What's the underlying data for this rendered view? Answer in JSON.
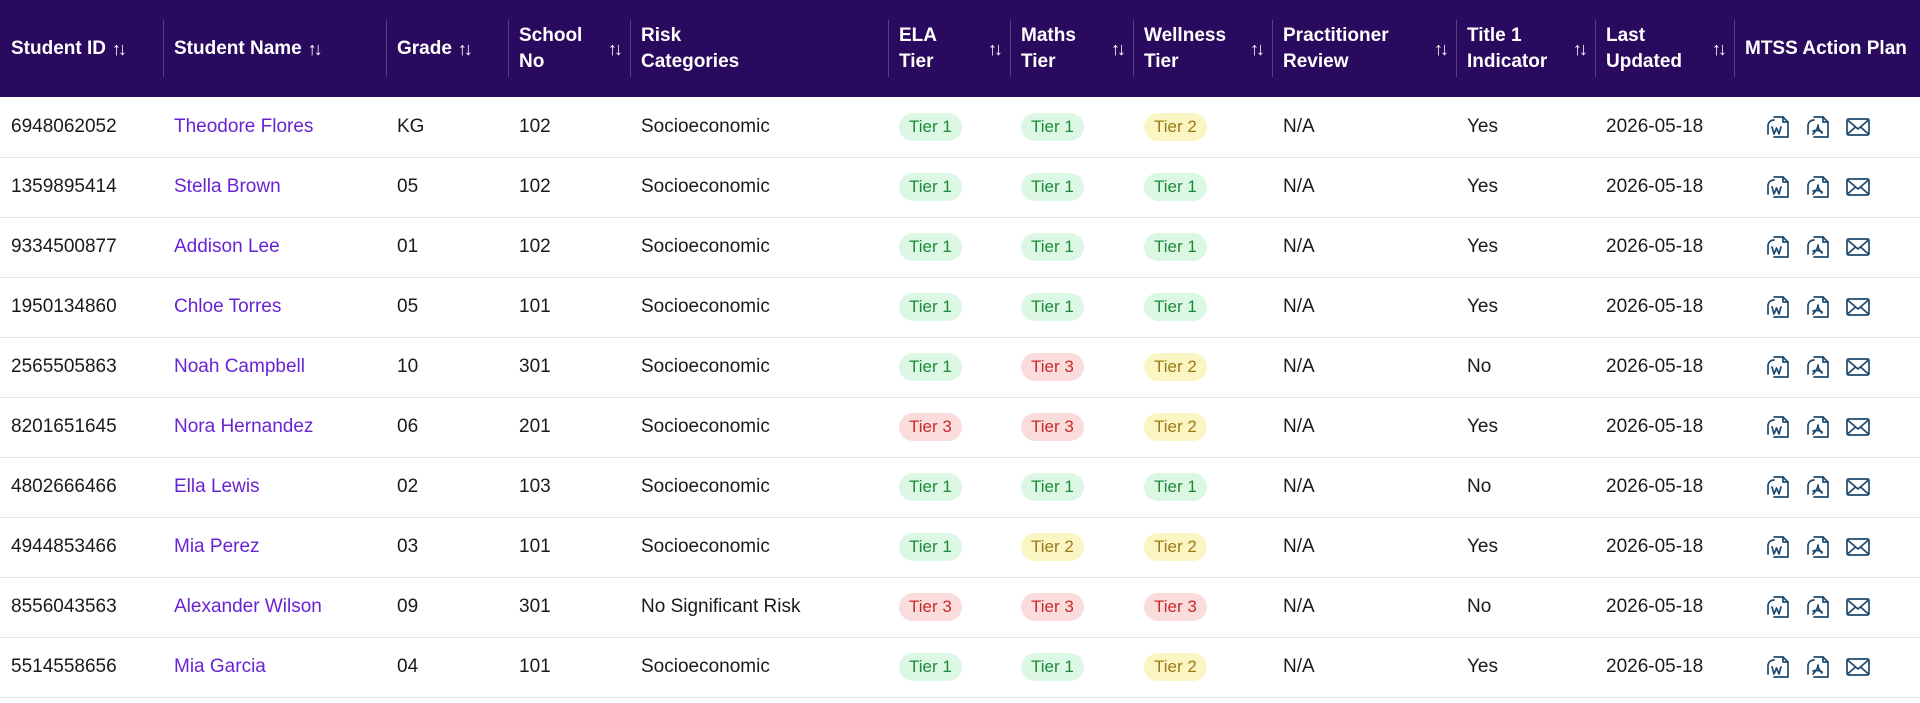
{
  "columns": [
    {
      "label": "Student ID",
      "sortable": true
    },
    {
      "label": "Student Name",
      "sortable": true
    },
    {
      "label": "Grade",
      "sortable": true
    },
    {
      "label": "School No",
      "sortable": true
    },
    {
      "label": "Risk Categories",
      "sortable": false
    },
    {
      "label": "ELA Tier",
      "sortable": true
    },
    {
      "label": "Maths Tier",
      "sortable": true
    },
    {
      "label": "Wellness Tier",
      "sortable": true
    },
    {
      "label": "Practitioner Review",
      "sortable": true
    },
    {
      "label": "Title 1 Indicator",
      "sortable": true
    },
    {
      "label": "Last Updated",
      "sortable": true
    },
    {
      "label": "MTSS Action Plan",
      "sortable": false
    }
  ],
  "sort_icon": "sort-updown-icon",
  "action_icons": [
    "word-doc-icon",
    "pdf-doc-icon",
    "email-icon"
  ],
  "colors": {
    "header_bg": "#2a0a5e",
    "name_link": "#6a23d4",
    "tier1_bg": "#dcf7e3",
    "tier1_fg": "#1d8a3a",
    "tier2_bg": "#fbf5c4",
    "tier2_fg": "#9a7a12",
    "tier3_bg": "#fbdcdc",
    "tier3_fg": "#c42b2b"
  },
  "rows": [
    {
      "id": "6948062052",
      "name": "Theodore Flores",
      "grade": "KG",
      "school": "102",
      "risk": "Socioeconomic",
      "ela": "Tier 1",
      "maths": "Tier 1",
      "wellness": "Tier 2",
      "review": "N/A",
      "title1": "Yes",
      "updated": "2026-05-18"
    },
    {
      "id": "1359895414",
      "name": "Stella Brown",
      "grade": "05",
      "school": "102",
      "risk": "Socioeconomic",
      "ela": "Tier 1",
      "maths": "Tier 1",
      "wellness": "Tier 1",
      "review": "N/A",
      "title1": "Yes",
      "updated": "2026-05-18"
    },
    {
      "id": "9334500877",
      "name": "Addison Lee",
      "grade": "01",
      "school": "102",
      "risk": "Socioeconomic",
      "ela": "Tier 1",
      "maths": "Tier 1",
      "wellness": "Tier 1",
      "review": "N/A",
      "title1": "Yes",
      "updated": "2026-05-18"
    },
    {
      "id": "1950134860",
      "name": "Chloe Torres",
      "grade": "05",
      "school": "101",
      "risk": "Socioeconomic",
      "ela": "Tier 1",
      "maths": "Tier 1",
      "wellness": "Tier 1",
      "review": "N/A",
      "title1": "Yes",
      "updated": "2026-05-18"
    },
    {
      "id": "2565505863",
      "name": "Noah Campbell",
      "grade": "10",
      "school": "301",
      "risk": "Socioeconomic",
      "ela": "Tier 1",
      "maths": "Tier 3",
      "wellness": "Tier 2",
      "review": "N/A",
      "title1": "No",
      "updated": "2026-05-18"
    },
    {
      "id": "8201651645",
      "name": "Nora Hernandez",
      "grade": "06",
      "school": "201",
      "risk": "Socioeconomic",
      "ela": "Tier 3",
      "maths": "Tier 3",
      "wellness": "Tier 2",
      "review": "N/A",
      "title1": "Yes",
      "updated": "2026-05-18"
    },
    {
      "id": "4802666466",
      "name": "Ella Lewis",
      "grade": "02",
      "school": "103",
      "risk": "Socioeconomic",
      "ela": "Tier 1",
      "maths": "Tier 1",
      "wellness": "Tier 1",
      "review": "N/A",
      "title1": "No",
      "updated": "2026-05-18"
    },
    {
      "id": "4944853466",
      "name": "Mia Perez",
      "grade": "03",
      "school": "101",
      "risk": "Socioeconomic",
      "ela": "Tier 1",
      "maths": "Tier 2",
      "wellness": "Tier 2",
      "review": "N/A",
      "title1": "Yes",
      "updated": "2026-05-18"
    },
    {
      "id": "8556043563",
      "name": "Alexander Wilson",
      "grade": "09",
      "school": "301",
      "risk": "No Significant Risk",
      "ela": "Tier 3",
      "maths": "Tier 3",
      "wellness": "Tier 3",
      "review": "N/A",
      "title1": "No",
      "updated": "2026-05-18"
    },
    {
      "id": "5514558656",
      "name": "Mia Garcia",
      "grade": "04",
      "school": "101",
      "risk": "Socioeconomic",
      "ela": "Tier 1",
      "maths": "Tier 1",
      "wellness": "Tier 2",
      "review": "N/A",
      "title1": "Yes",
      "updated": "2026-05-18"
    }
  ]
}
